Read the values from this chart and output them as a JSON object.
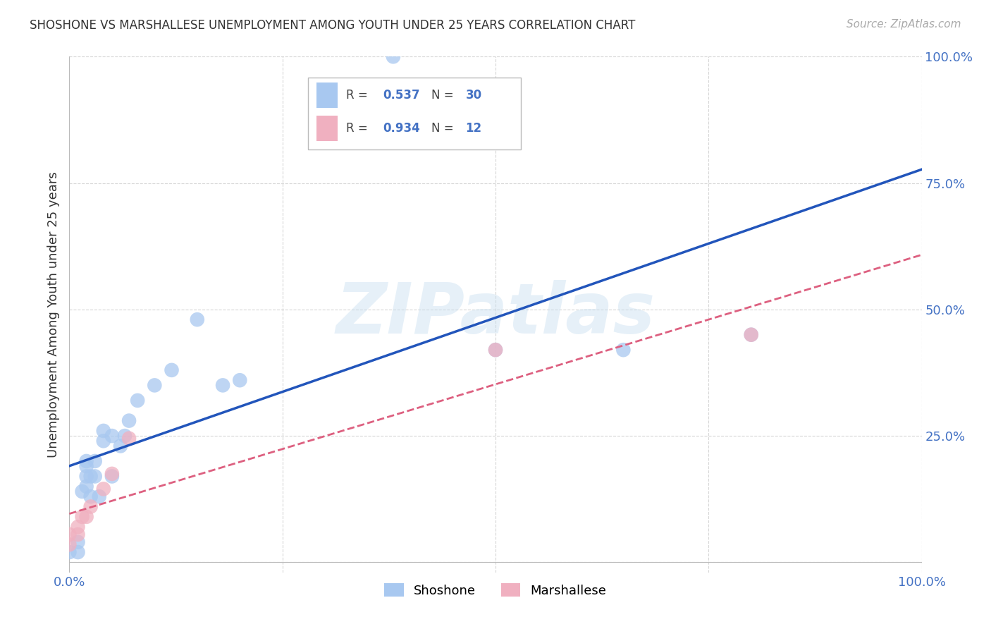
{
  "title": "SHOSHONE VS MARSHALLESE UNEMPLOYMENT AMONG YOUTH UNDER 25 YEARS CORRELATION CHART",
  "source": "Source: ZipAtlas.com",
  "ylabel": "Unemployment Among Youth under 25 years",
  "xlim": [
    0,
    1.0
  ],
  "ylim": [
    -0.02,
    1.0
  ],
  "xticks": [
    0.0,
    0.25,
    0.5,
    0.75,
    1.0
  ],
  "yticks": [
    0.0,
    0.25,
    0.5,
    0.75,
    1.0
  ],
  "shoshone_R": 0.537,
  "shoshone_N": 30,
  "marshallese_R": 0.934,
  "marshallese_N": 12,
  "shoshone_color": "#a8c8f0",
  "marshallese_color": "#f0b0c0",
  "shoshone_line_color": "#2255bb",
  "marshallese_line_color": "#dd6080",
  "watermark_text": "ZIPatlas",
  "shoshone_x": [
    0.0,
    0.01,
    0.01,
    0.015,
    0.02,
    0.02,
    0.02,
    0.02,
    0.025,
    0.025,
    0.03,
    0.03,
    0.035,
    0.04,
    0.04,
    0.05,
    0.05,
    0.06,
    0.065,
    0.07,
    0.08,
    0.1,
    0.12,
    0.15,
    0.18,
    0.2,
    0.5,
    0.65,
    0.8,
    0.38
  ],
  "shoshone_y": [
    0.02,
    0.02,
    0.04,
    0.14,
    0.15,
    0.17,
    0.19,
    0.2,
    0.13,
    0.17,
    0.17,
    0.2,
    0.13,
    0.24,
    0.26,
    0.17,
    0.25,
    0.23,
    0.25,
    0.28,
    0.32,
    0.35,
    0.38,
    0.48,
    0.35,
    0.36,
    0.42,
    0.42,
    0.45,
    1.0
  ],
  "marshallese_x": [
    0.0,
    0.0,
    0.01,
    0.01,
    0.015,
    0.02,
    0.025,
    0.04,
    0.05,
    0.07,
    0.5,
    0.8
  ],
  "marshallese_y": [
    0.035,
    0.055,
    0.055,
    0.07,
    0.09,
    0.09,
    0.11,
    0.145,
    0.175,
    0.245,
    0.42,
    0.45
  ]
}
